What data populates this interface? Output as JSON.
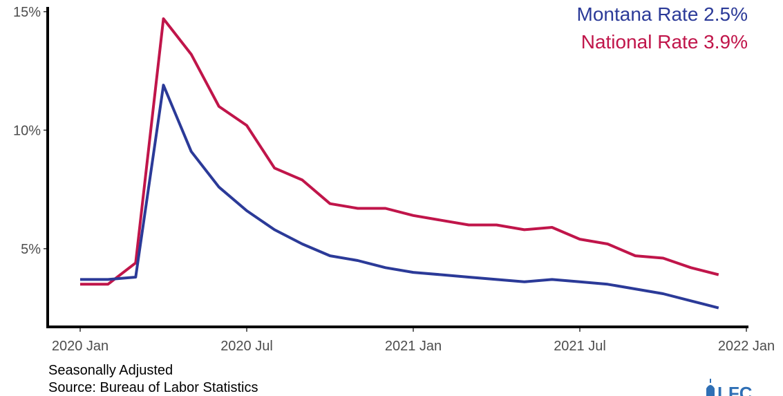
{
  "chart_data": {
    "type": "line",
    "x": [
      "2020-01",
      "2020-02",
      "2020-03",
      "2020-04",
      "2020-05",
      "2020-06",
      "2020-07",
      "2020-08",
      "2020-09",
      "2020-10",
      "2020-11",
      "2020-12",
      "2021-01",
      "2021-02",
      "2021-03",
      "2021-04",
      "2021-05",
      "2021-06",
      "2021-07",
      "2021-08",
      "2021-09",
      "2021-10",
      "2021-11",
      "2021-12"
    ],
    "series": [
      {
        "name": "Montana Rate 2.5%",
        "color": "#2b3a98",
        "values": [
          3.7,
          3.7,
          3.8,
          11.9,
          9.1,
          7.6,
          6.6,
          5.8,
          5.2,
          4.7,
          4.5,
          4.2,
          4.0,
          3.9,
          3.8,
          3.7,
          3.6,
          3.7,
          3.6,
          3.5,
          3.3,
          3.1,
          2.8,
          2.5
        ]
      },
      {
        "name": "National Rate 3.9%",
        "color": "#c0154a",
        "values": [
          3.5,
          3.5,
          4.4,
          14.7,
          13.2,
          11.0,
          10.2,
          8.4,
          7.9,
          6.9,
          6.7,
          6.7,
          6.4,
          6.2,
          6.0,
          6.0,
          5.8,
          5.9,
          5.4,
          5.2,
          4.7,
          4.6,
          4.2,
          3.9
        ]
      }
    ],
    "y_ticks": [
      {
        "value": 5,
        "label": "5%"
      },
      {
        "value": 10,
        "label": "10%"
      },
      {
        "value": 15,
        "label": "15%"
      }
    ],
    "x_ticks": [
      {
        "value": "2020-01",
        "label": "2020 Jan"
      },
      {
        "value": "2020-07",
        "label": "2020 Jul"
      },
      {
        "value": "2021-01",
        "label": "2021 Jan"
      },
      {
        "value": "2021-07",
        "label": "2021 Jul"
      },
      {
        "value": "2022-01",
        "label": "2022 Jan"
      }
    ],
    "ylim": [
      1.7,
      15.2
    ],
    "xlim": [
      "2019-12",
      "2022-01"
    ],
    "grid": false,
    "legend_position": "top-right",
    "title": "",
    "xlabel": "",
    "ylabel": ""
  },
  "caption": {
    "line1": "Seasonally Adjusted",
    "line2": "Source: Bureau of Labor Statistics"
  },
  "logo": {
    "text": "LFC",
    "color": "#2f6fb5"
  }
}
